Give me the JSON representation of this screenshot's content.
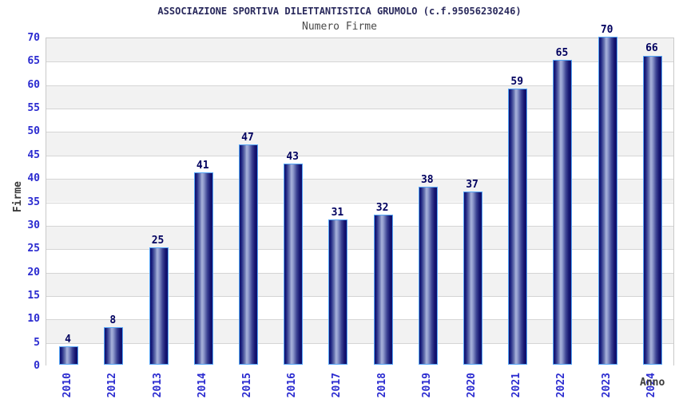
{
  "title": "ASSOCIAZIONE SPORTIVA DILETTANTISTICA GRUMOLO (c.f.95056230246)",
  "subtitle": "Numero Firme",
  "chart_data": {
    "type": "bar",
    "title": "ASSOCIAZIONE SPORTIVA DILETTANTISTICA GRUMOLO (c.f.95056230246)",
    "subtitle": "Numero Firme",
    "categories": [
      "2010",
      "2012",
      "2013",
      "2014",
      "2015",
      "2016",
      "2017",
      "2018",
      "2019",
      "2020",
      "2021",
      "2022",
      "2023",
      "2024"
    ],
    "values": [
      4,
      8,
      25,
      41,
      47,
      43,
      31,
      32,
      38,
      37,
      59,
      65,
      70,
      66
    ],
    "xlabel": "Anno",
    "ylabel": "Firme",
    "ylim": [
      0,
      70
    ],
    "ytick_step": 5,
    "grid": true,
    "legend_position": "none",
    "bands_alternating": true,
    "colors": {
      "bar_dark": "#0f0f6d",
      "bar_light": "#a8b2da",
      "bar_border": "#55a6f7",
      "tick_label": "#2b2bd0",
      "value_label": "#00005f",
      "axis_label": "#3c3c3c",
      "title": "#29295c",
      "subtitle": "#4a4a4a",
      "band_gray": "#f2f2f2",
      "gridline": "#d5d5d5",
      "plot_border": "#c9c9c9"
    }
  }
}
